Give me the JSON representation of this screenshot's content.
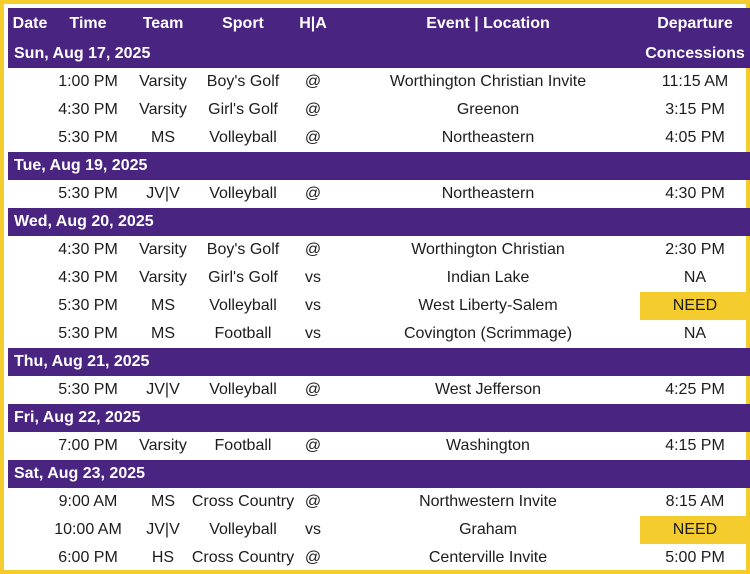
{
  "headers": {
    "date": "Date",
    "time": "Time",
    "team": "Team",
    "sport": "Sport",
    "ha": "H|A",
    "event": "Event | Location",
    "departure": "Departure",
    "concessions": "Concessions"
  },
  "colors": {
    "purple": "#4a2481",
    "gold": "#f5cc2e"
  },
  "groups": [
    {
      "date": "Sun, Aug 17, 2025",
      "events": [
        {
          "time": "1:00 PM",
          "team": "Varsity",
          "sport": "Boy's Golf",
          "ha": "@",
          "event": "Worthington Christian Invite",
          "departure": "11:15 AM"
        },
        {
          "time": "4:30 PM",
          "team": "Varsity",
          "sport": "Girl's Golf",
          "ha": "@",
          "event": "Greenon",
          "departure": "3:15 PM"
        },
        {
          "time": "5:30 PM",
          "team": "MS",
          "sport": "Volleyball",
          "ha": "@",
          "event": "Northeastern",
          "departure": "4:05 PM"
        }
      ]
    },
    {
      "date": "Tue, Aug 19, 2025",
      "events": [
        {
          "time": "5:30 PM",
          "team": "JV|V",
          "sport": "Volleyball",
          "ha": "@",
          "event": "Northeastern",
          "departure": "4:30 PM"
        }
      ]
    },
    {
      "date": "Wed, Aug 20, 2025",
      "events": [
        {
          "time": "4:30 PM",
          "team": "Varsity",
          "sport": "Boy's Golf",
          "ha": "@",
          "event": "Worthington Christian",
          "departure": "2:30 PM"
        },
        {
          "time": "4:30 PM",
          "team": "Varsity",
          "sport": "Girl's Golf",
          "ha": "vs",
          "event": "Indian Lake",
          "departure": "NA"
        },
        {
          "time": "5:30 PM",
          "team": "MS",
          "sport": "Volleyball",
          "ha": "vs",
          "event": "West Liberty-Salem",
          "departure": "NEED"
        },
        {
          "time": "5:30 PM",
          "team": "MS",
          "sport": "Football",
          "ha": "vs",
          "event": "Covington (Scrimmage)",
          "departure": "NA"
        }
      ]
    },
    {
      "date": "Thu, Aug 21, 2025",
      "events": [
        {
          "time": "5:30 PM",
          "team": "JV|V",
          "sport": "Volleyball",
          "ha": "@",
          "event": "West Jefferson",
          "departure": "4:25 PM"
        }
      ]
    },
    {
      "date": "Fri, Aug 22, 2025",
      "events": [
        {
          "time": "7:00 PM",
          "team": "Varsity",
          "sport": "Football",
          "ha": "@",
          "event": "Washington",
          "departure": "4:15 PM"
        }
      ]
    },
    {
      "date": "Sat, Aug 23, 2025",
      "events": [
        {
          "time": "9:00 AM",
          "team": "MS",
          "sport": "Cross Country",
          "ha": "@",
          "event": "Northwestern Invite",
          "departure": "8:15 AM"
        },
        {
          "time": "10:00 AM",
          "team": "JV|V",
          "sport": "Volleyball",
          "ha": "vs",
          "event": "Graham",
          "departure": "NEED"
        },
        {
          "time": "6:00 PM",
          "team": "HS",
          "sport": "Cross Country",
          "ha": "@",
          "event": "Centerville Invite",
          "departure": "5:00 PM"
        }
      ]
    }
  ]
}
